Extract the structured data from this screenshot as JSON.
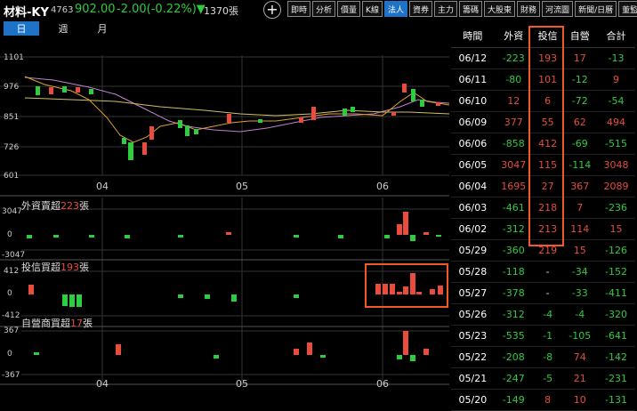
{
  "header": {
    "name": "材料-KY",
    "code": "4763",
    "price": "902.00",
    "change": "-2.00(-0.22%)▼",
    "volume": "1370張",
    "add_label": "+"
  },
  "nav_tabs": [
    "即時",
    "分析",
    "價量",
    "K線",
    "法人",
    "資券",
    "主力",
    "籌碼",
    "大股東",
    "財務",
    "河流圖",
    "新聞/日曆",
    "董監/公司"
  ],
  "nav_active": "法人",
  "period_tabs": [
    "日",
    "週",
    "月"
  ],
  "period_active": "日",
  "main_chart": {
    "y_ticks": [
      "1101",
      "976",
      "851",
      "726",
      "601"
    ],
    "x_ticks": [
      "04",
      "05",
      "06"
    ]
  },
  "foreign_panel": {
    "label_prefix": "外資賣超",
    "label_value": "223",
    "label_unit": "張",
    "y_ticks": [
      "3047",
      "0",
      "-3047"
    ]
  },
  "trust_panel": {
    "label_prefix": "投信買超",
    "label_value": "193",
    "label_unit": "張",
    "y_ticks": [
      "412",
      "0",
      "-412"
    ]
  },
  "dealer_panel": {
    "label_prefix": "自營商買超",
    "label_value": "17",
    "label_unit": "張",
    "y_ticks": [
      "367",
      "0",
      "-367"
    ]
  },
  "bottom_x_ticks": [
    "04",
    "05",
    "06"
  ],
  "table": {
    "headers": [
      "時間",
      "外資",
      "投信",
      "自營",
      "合計"
    ],
    "rows": [
      [
        "06/12",
        "-223",
        "193",
        "17",
        "-13"
      ],
      [
        "06/11",
        "-80",
        "101",
        "-12",
        "9"
      ],
      [
        "06/10",
        "12",
        "6",
        "-72",
        "-54"
      ],
      [
        "06/09",
        "377",
        "55",
        "62",
        "494"
      ],
      [
        "06/06",
        "-858",
        "412",
        "-69",
        "-515"
      ],
      [
        "06/05",
        "3047",
        "115",
        "-114",
        "3048"
      ],
      [
        "06/04",
        "1695",
        "27",
        "367",
        "2089"
      ],
      [
        "06/03",
        "-461",
        "218",
        "7",
        "-236"
      ],
      [
        "06/02",
        "-312",
        "213",
        "114",
        "15"
      ],
      [
        "05/29",
        "-360",
        "219",
        "15",
        "-126"
      ],
      [
        "05/28",
        "-118",
        "-",
        "-34",
        "-152"
      ],
      [
        "05/27",
        "-378",
        "-",
        "-33",
        "-411"
      ],
      [
        "05/26",
        "-312",
        "-4",
        "-4",
        "-320"
      ],
      [
        "05/23",
        "-535",
        "-1",
        "-105",
        "-641"
      ],
      [
        "05/22",
        "-208",
        "-8",
        "74",
        "-142"
      ],
      [
        "05/21",
        "-247",
        "-5",
        "21",
        "-231"
      ],
      [
        "05/20",
        "-149",
        "8",
        "10",
        "-131"
      ]
    ]
  },
  "colors": {
    "up": "#e74c3c",
    "down": "#2ecc40",
    "accent": "#1e73c9",
    "highlight": "#f05a28"
  }
}
